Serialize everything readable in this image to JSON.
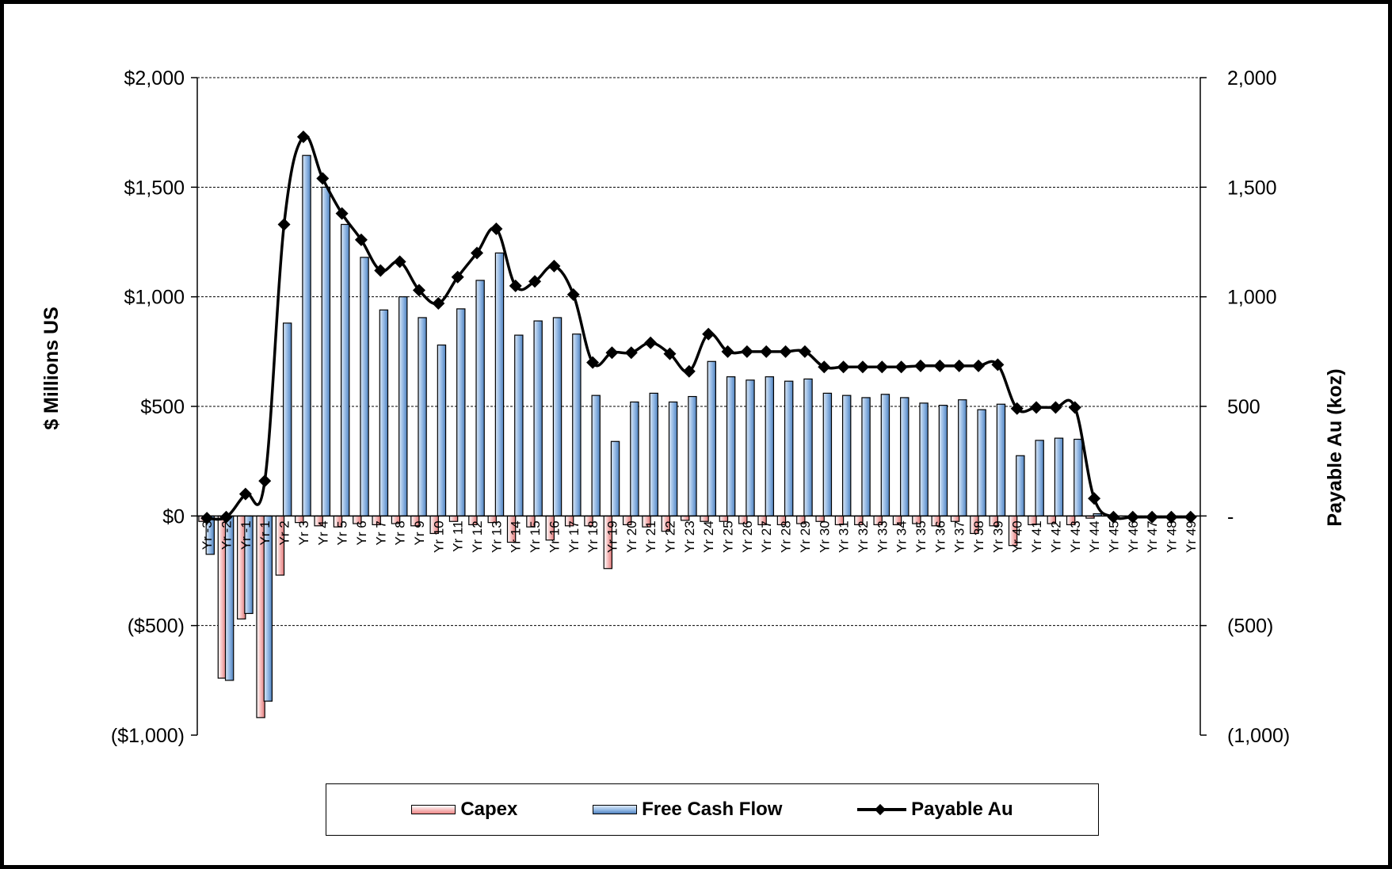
{
  "chart_data": {
    "type": "bar",
    "categories": [
      "Yr -3",
      "Yr -2",
      "Yr -1",
      "Yr 1",
      "Yr 2",
      "Yr 3",
      "Yr 4",
      "Yr 5",
      "Yr 6",
      "Yr 7",
      "Yr 8",
      "Yr 9",
      "Yr 10",
      "Yr 11",
      "Yr 12",
      "Yr 13",
      "Yr 14",
      "Yr 15",
      "Yr 16",
      "Yr 17",
      "Yr 18",
      "Yr 19",
      "Yr 20",
      "Yr 21",
      "Yr 22",
      "Yr 23",
      "Yr 24",
      "Yr 25",
      "Yr 26",
      "Yr 27",
      "Yr 28",
      "Yr 29",
      "Yr 30",
      "Yr 31",
      "Yr 32",
      "Yr 33",
      "Yr 34",
      "Yr 35",
      "Yr 36",
      "Yr 37",
      "Yr 38",
      "Yr 39",
      "Yr 40",
      "Yr 41",
      "Yr 42",
      "Yr 43",
      "Yr 44",
      "Yr 45",
      "Yr 46",
      "Yr 47",
      "Yr 48",
      "Yr 49"
    ],
    "series": [
      {
        "name": "Capex",
        "axis": "left",
        "color": "#f4b6b6",
        "values": [
          -25,
          -740,
          -470,
          -920,
          -270,
          -30,
          -45,
          -50,
          -35,
          -40,
          -35,
          -45,
          -80,
          -25,
          -40,
          -30,
          -120,
          -50,
          -110,
          -45,
          -45,
          -240,
          -40,
          -50,
          -70,
          -20,
          -25,
          -25,
          -35,
          -40,
          -40,
          -35,
          -25,
          -40,
          -40,
          -40,
          -40,
          -35,
          -45,
          -25,
          -80,
          -45,
          -135,
          -40,
          -35,
          -40,
          -10,
          0,
          0,
          0,
          0,
          0
        ]
      },
      {
        "name": "Free Cash Flow",
        "axis": "left",
        "color": "#8db4e2",
        "values": [
          -175,
          -750,
          -445,
          -845,
          880,
          1645,
          1500,
          1330,
          1180,
          940,
          1000,
          905,
          780,
          945,
          1075,
          1200,
          825,
          890,
          905,
          830,
          550,
          340,
          520,
          560,
          520,
          545,
          705,
          635,
          620,
          635,
          615,
          625,
          560,
          550,
          540,
          555,
          540,
          515,
          505,
          530,
          485,
          510,
          275,
          345,
          355,
          350,
          10,
          0,
          0,
          0,
          0,
          0
        ]
      },
      {
        "name": "Payable Au",
        "axis": "right",
        "type": "line",
        "color": "#000000",
        "values": [
          -10,
          -5,
          100,
          160,
          1330,
          1730,
          1540,
          1380,
          1260,
          1120,
          1160,
          1030,
          970,
          1090,
          1200,
          1310,
          1050,
          1070,
          1140,
          1010,
          700,
          745,
          745,
          790,
          740,
          660,
          830,
          750,
          750,
          750,
          750,
          750,
          680,
          680,
          680,
          680,
          680,
          685,
          685,
          685,
          685,
          690,
          490,
          495,
          495,
          495,
          80,
          -5,
          -5,
          -5,
          -5,
          -5
        ]
      }
    ],
    "yleft": {
      "label": "$ Millions US",
      "range": [
        -1000,
        2000
      ],
      "ticks": [
        2000,
        1500,
        1000,
        500,
        0,
        -500,
        -1000
      ],
      "tick_labels": [
        "$2,000",
        "$1,500",
        "$1,000",
        "$500",
        "$0",
        "($500)",
        "($1,000)"
      ]
    },
    "yright": {
      "label": "Payable Au (koz)",
      "range": [
        -1000,
        2000
      ],
      "ticks": [
        2000,
        1500,
        1000,
        500,
        0,
        -500,
        -1000
      ],
      "tick_labels": [
        "2,000",
        "1,500",
        "1,000",
        "500",
        "-",
        "(500)",
        "(1,000)"
      ]
    },
    "grid": true,
    "legend_position": "bottom"
  },
  "legend": {
    "capex": "Capex",
    "fcf": "Free Cash Flow",
    "au": "Payable Au"
  }
}
